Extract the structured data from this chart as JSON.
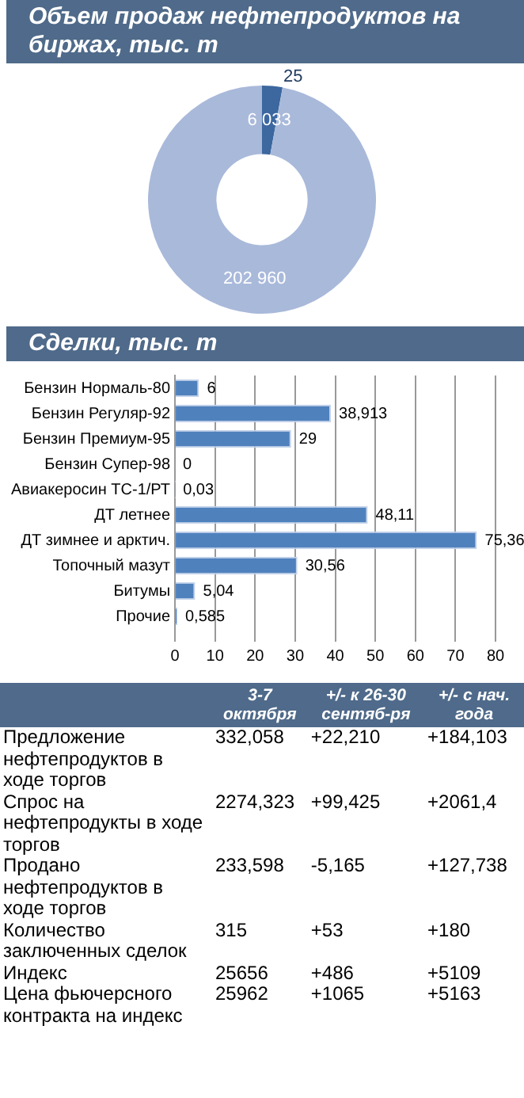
{
  "chart_data": [
    {
      "type": "donut",
      "title": "Объем продаж нефтепродуктов на биржах, тыс. т",
      "categories": [
        null,
        null,
        null
      ],
      "values": [
        6033,
        25,
        202960
      ],
      "colors": [
        "#3c679f",
        "#3c679f",
        "#a9b9da"
      ],
      "value_labels": [
        "6 033",
        "25",
        "202 960"
      ]
    },
    {
      "type": "bar",
      "title": "Сделки, тыс. т",
      "orientation": "horizontal",
      "categories": [
        "Бензин Нормаль-80",
        "Бензин Регуляр-92",
        "Бензин Премиум-95",
        "Бензин Супер-98",
        "Авиакеросин ТС-1/РТ",
        "ДТ летнее",
        "ДТ зимнее и арктич.",
        "Топочный мазут",
        "Битумы",
        "Прочие"
      ],
      "values": [
        6,
        38.913,
        29,
        0,
        0.03,
        48.11,
        75.36,
        30.56,
        5.04,
        0.585
      ],
      "color": "#4f81bd",
      "xlim": [
        0,
        80
      ],
      "xticks": [
        0,
        10,
        20,
        30,
        40,
        50,
        60,
        70,
        80
      ],
      "grid": "x",
      "value_labels": [
        "6",
        "38,913",
        "29",
        "0",
        "0,03",
        "48,11",
        "75,36",
        "30,56",
        "5,04",
        "0,585"
      ]
    },
    {
      "type": "other",
      "categories": [
        "3-7 октября",
        "+/- к 26-30 сентяб-ря",
        "+/- с нач. года"
      ],
      "y_categories": [
        "Предложение нефтепродуктов в ходе торгов",
        "Спрос на нефтепродукты в ходе торгов",
        "Продано нефтепродуктов в ходе торгов",
        "Количество заключенных сделок",
        "Индекс",
        "Цена фьючерсного контракта на индекс"
      ],
      "cell_labels": [
        [
          "332,058",
          "+22,210",
          "+184,103"
        ],
        [
          "2274,323",
          "+99,425",
          "+2061,4"
        ],
        [
          "233,598",
          "-5,165",
          "+127,738"
        ],
        [
          "315",
          "+53",
          "+180"
        ],
        [
          "25656",
          "+486",
          "+5109"
        ],
        [
          "25962",
          "+1065",
          "+5163"
        ]
      ]
    }
  ]
}
